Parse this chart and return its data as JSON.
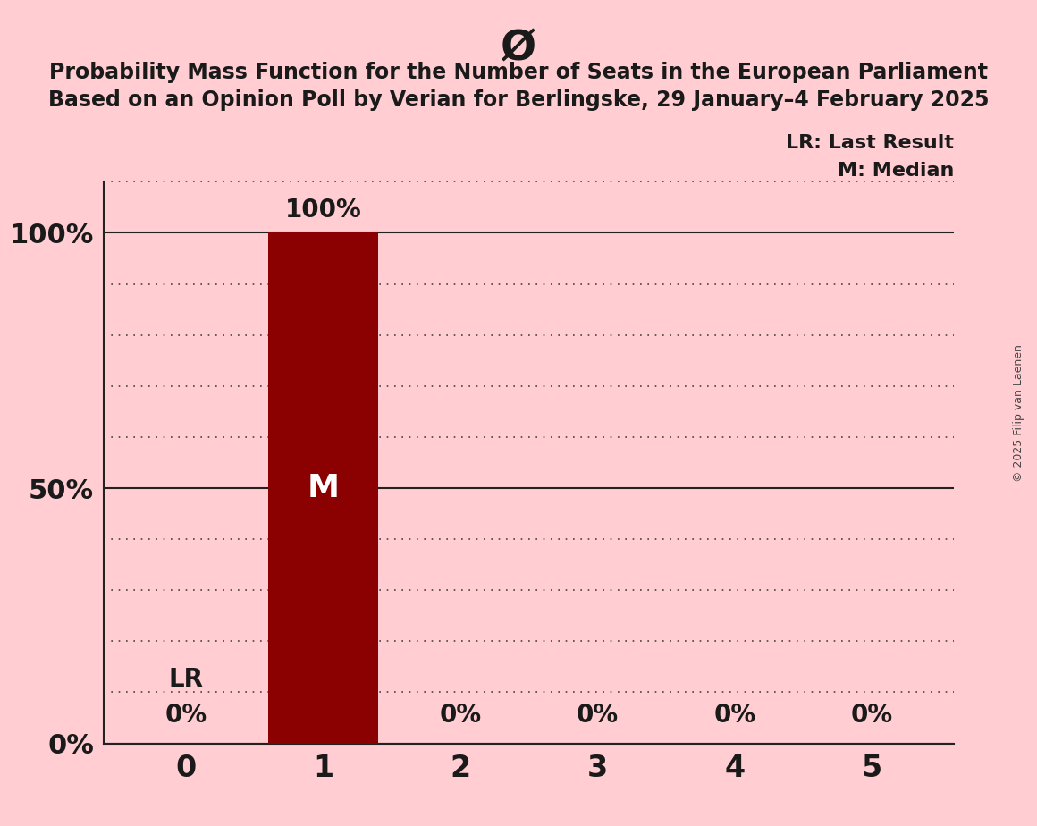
{
  "title_symbol": "Ø",
  "title_line1": "Probability Mass Function for the Number of Seats in the European Parliament",
  "title_line2": "Based on an Opinion Poll by Verian for Berlingske, 29 January–4 February 2025",
  "copyright_text": "© 2025 Filip van Laenen",
  "seats": [
    0,
    1,
    2,
    3,
    4,
    5
  ],
  "probabilities": [
    0.0,
    1.0,
    0.0,
    0.0,
    0.0,
    0.0
  ],
  "bar_color": "#8b0000",
  "background_color": "#ffcdd2",
  "median_seat": 1,
  "last_result_seat": 0,
  "legend_lr": "LR: Last Result",
  "legend_m": "M: Median",
  "ylabel_ticks": [
    0.0,
    0.5,
    1.0
  ],
  "ylabel_labels": [
    "0%",
    "50%",
    "100%"
  ],
  "ylim": [
    0,
    1.0
  ],
  "bar_width": 0.8,
  "pct_label_fontsize": 20,
  "ytick_fontsize": 22,
  "xtick_fontsize": 24,
  "title_symbol_fontsize": 34,
  "title_fontsize": 17,
  "legend_fontsize": 16,
  "m_label_fontsize": 26,
  "lr_label_fontsize": 20,
  "copyright_fontsize": 9
}
